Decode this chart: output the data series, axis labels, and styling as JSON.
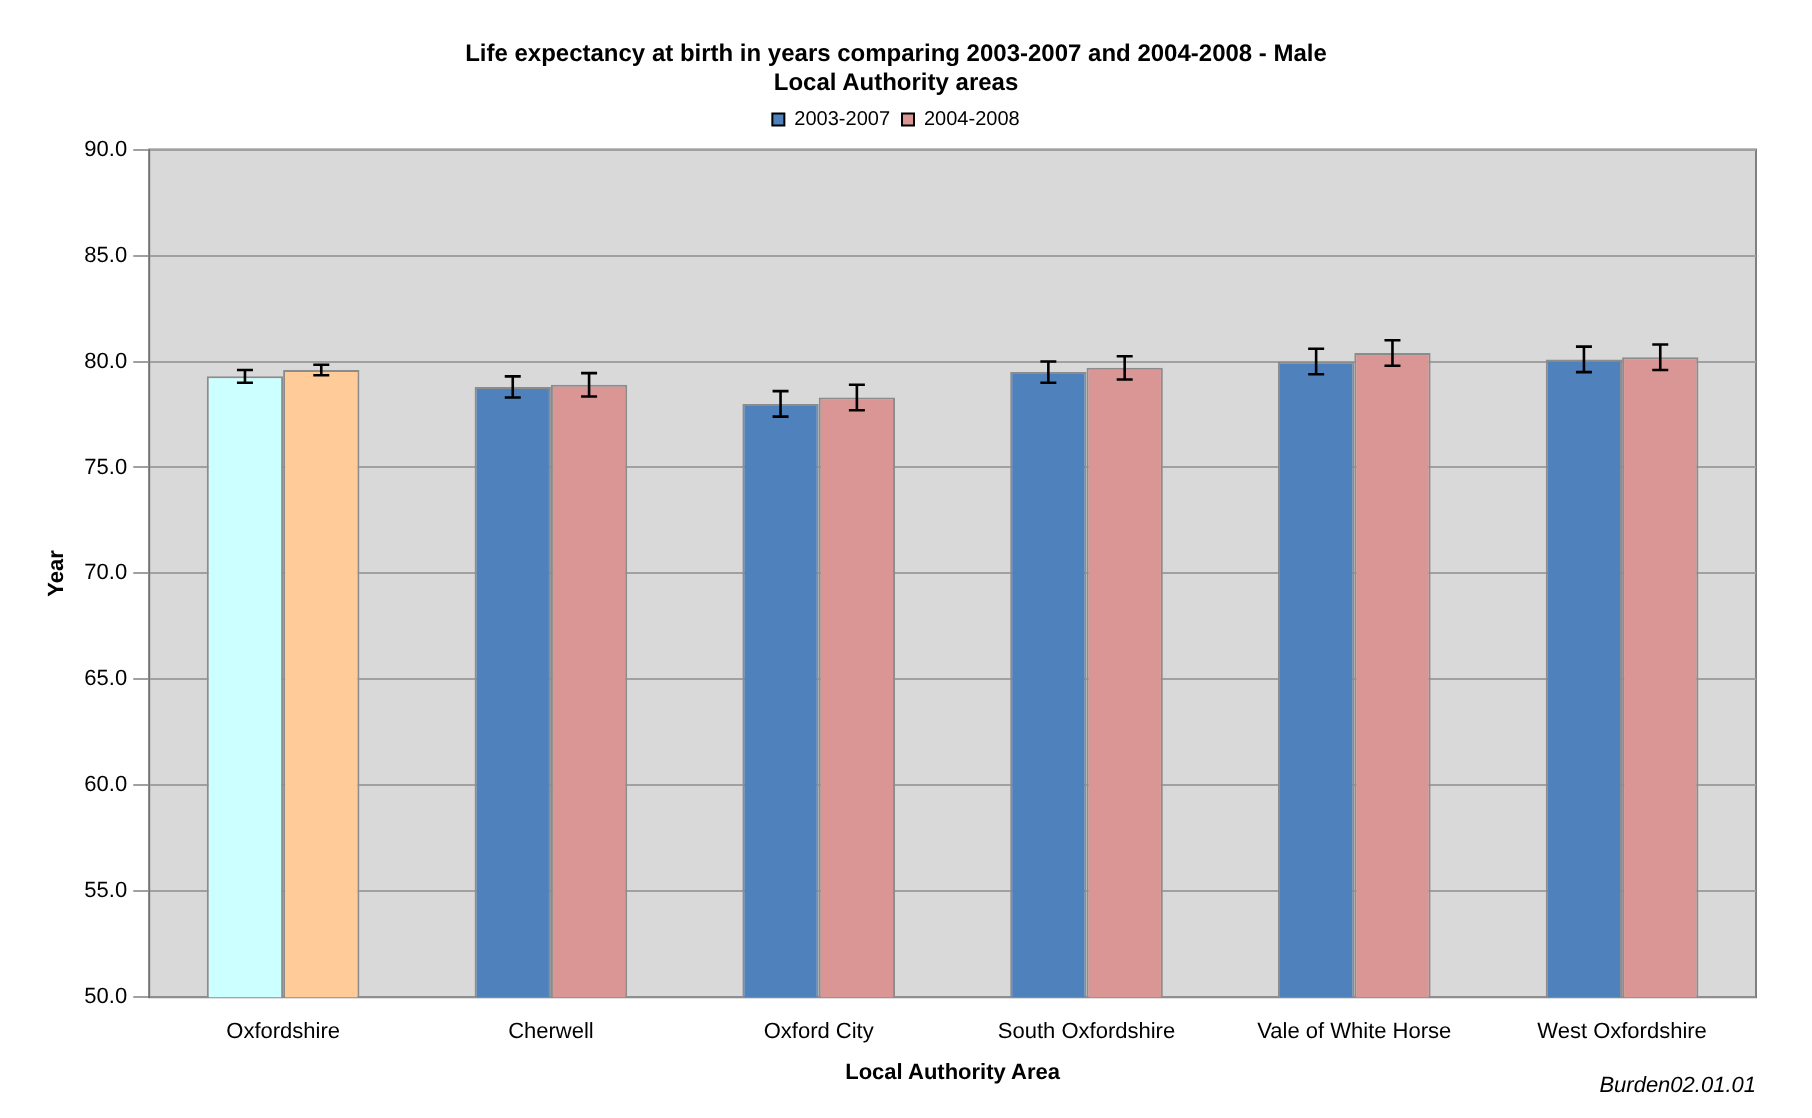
{
  "chart_data": {
    "type": "bar",
    "title": "Life expectancy at birth in years comparing 2003-2007 and 2004-2008 - Male",
    "subtitle": "Local Authority areas",
    "xlabel": "Local Authority Area",
    "ylabel": "Year",
    "categories": [
      "Oxfordshire",
      "Cherwell",
      "Oxford City",
      "South Oxfordshire",
      "Vale of White Horse",
      "West Oxfordshire"
    ],
    "series": [
      {
        "name": "2003-2007",
        "color": "#4f81bd",
        "colors": [
          "#ccffff",
          "#4f81bd",
          "#4f81bd",
          "#4f81bd",
          "#4f81bd",
          "#4f81bd"
        ],
        "values": [
          79.3,
          78.8,
          78.0,
          79.5,
          80.0,
          80.1
        ],
        "errors": [
          0.3,
          0.5,
          0.6,
          0.5,
          0.6,
          0.6
        ]
      },
      {
        "name": "2004-2008",
        "color": "#d99694",
        "colors": [
          "#ffcc99",
          "#d99694",
          "#d99694",
          "#d99694",
          "#d99694",
          "#d99694"
        ],
        "values": [
          79.6,
          78.9,
          78.3,
          79.7,
          80.4,
          80.2
        ],
        "errors": [
          0.25,
          0.55,
          0.6,
          0.55,
          0.6,
          0.6
        ]
      }
    ],
    "ylim": [
      50,
      90
    ],
    "yticks": [
      {
        "value": 50,
        "label": "50.0"
      },
      {
        "value": 55,
        "label": "55.0"
      },
      {
        "value": 60,
        "label": "60.0"
      },
      {
        "value": 65,
        "label": "65.0"
      },
      {
        "value": 70,
        "label": "70.0"
      },
      {
        "value": 75,
        "label": "75.0"
      },
      {
        "value": 80,
        "label": "80.0"
      },
      {
        "value": 85,
        "label": "85.0"
      },
      {
        "value": 90,
        "label": "90.0"
      }
    ],
    "grid": "y",
    "legend": "top",
    "annotations": [
      "Burden02.01.01"
    ]
  }
}
